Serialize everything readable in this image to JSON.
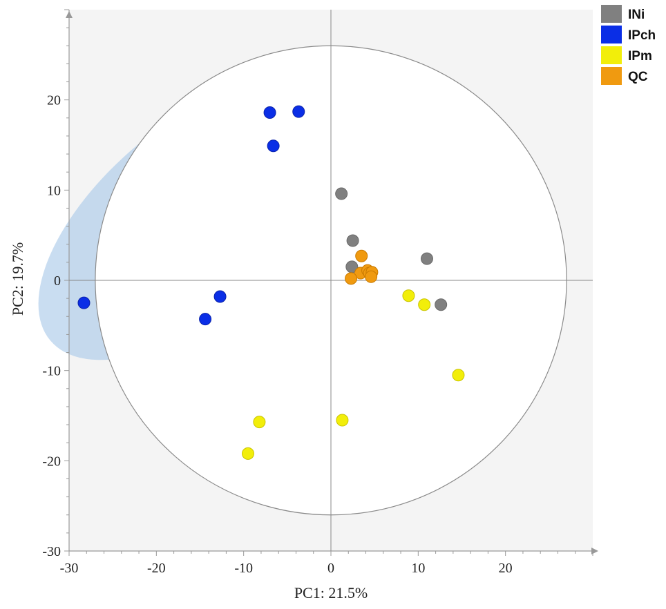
{
  "chart_data": {
    "type": "scatter",
    "xlabel": "PC1: 21.5%",
    "ylabel": "PC2: 19.7%",
    "xlim": [
      -30,
      30
    ],
    "ylim": [
      -30,
      30
    ],
    "x_ticks": [
      -30,
      -20,
      -10,
      0,
      10,
      20
    ],
    "y_ticks": [
      -30,
      -20,
      -10,
      0,
      10,
      20
    ],
    "hotelling_ellipse": {
      "center": [
        0,
        0
      ],
      "radius_x": 27,
      "radius_y": 26
    },
    "legend_position": "top-right",
    "series": [
      {
        "name": "INi",
        "color": "#808080",
        "points": [
          [
            1.2,
            9.6
          ],
          [
            2.5,
            4.4
          ],
          [
            2.4,
            1.5
          ],
          [
            11.0,
            2.4
          ],
          [
            12.6,
            -2.7
          ]
        ],
        "ellipse": {
          "center": [
            7.8,
            1.8
          ],
          "rx": 9.8,
          "ry": 5.0,
          "angle_deg": -38
        }
      },
      {
        "name": "IPch",
        "color": "#0a2ee6",
        "points": [
          [
            -7.0,
            18.6
          ],
          [
            -3.7,
            18.7
          ],
          [
            -6.6,
            14.9
          ],
          [
            -28.3,
            -2.5
          ],
          [
            -14.4,
            -4.3
          ],
          [
            -12.7,
            -1.8
          ]
        ],
        "ellipse": {
          "center": [
            -15.3,
            7.0
          ],
          "rx": 22.0,
          "ry": 10.4,
          "angle_deg": -40
        }
      },
      {
        "name": "IPm",
        "color": "#f2ee0a",
        "points": [
          [
            8.9,
            -1.7
          ],
          [
            10.7,
            -2.7
          ],
          [
            14.6,
            -10.5
          ],
          [
            -8.2,
            -15.7
          ],
          [
            1.3,
            -15.5
          ],
          [
            -9.5,
            -19.2
          ]
        ],
        "ellipse": {
          "center": [
            2.7,
            -12.0
          ],
          "rx": 15.0,
          "ry": 9.0,
          "angle_deg": -25
        }
      },
      {
        "name": "QC",
        "color": "#f09a10",
        "points": [
          [
            3.5,
            2.7
          ],
          [
            3.4,
            0.8
          ],
          [
            4.2,
            1.1
          ],
          [
            4.4,
            0.8
          ],
          [
            4.7,
            0.9
          ],
          [
            2.3,
            0.2
          ],
          [
            4.6,
            0.4
          ]
        ],
        "ellipse": {
          "center": [
            3.8,
            1.2
          ],
          "rx": 3.0,
          "ry": 1.5,
          "angle_deg": -80
        }
      }
    ]
  }
}
